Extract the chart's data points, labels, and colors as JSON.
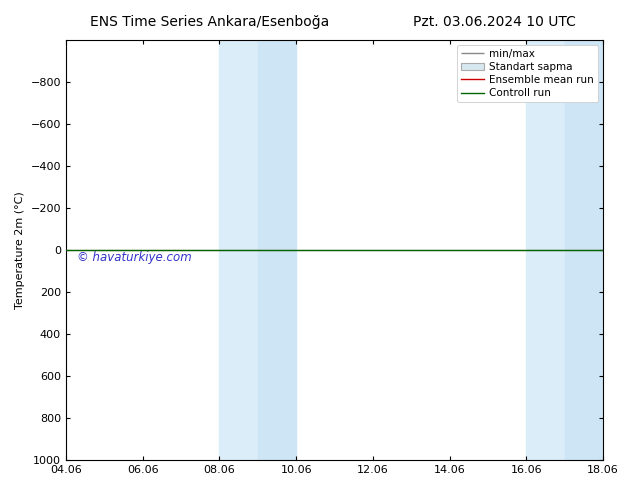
{
  "title_left": "ENS Time Series Ankara/Esenboğa",
  "title_right": "Pzt. 03.06.2024 10 UTC",
  "ylabel": "Temperature 2m (°C)",
  "ylim_bottom": -1000,
  "ylim_top": 1000,
  "yticks": [
    -800,
    -600,
    -400,
    -200,
    0,
    200,
    400,
    600,
    800,
    1000
  ],
  "xtick_labels": [
    "04.06",
    "06.06",
    "08.06",
    "10.06",
    "12.06",
    "14.06",
    "16.06",
    "18.06"
  ],
  "xtick_positions": [
    0,
    2,
    4,
    6,
    8,
    10,
    12,
    14
  ],
  "shaded_regions": [
    [
      4,
      5
    ],
    [
      5,
      6
    ],
    [
      12,
      13
    ],
    [
      13,
      14
    ]
  ],
  "shaded_colors": [
    "#daedf8",
    "#cde5f5",
    "#daedf8",
    "#cde5f5"
  ],
  "ensemble_mean_color": "#cc0000",
  "control_run_color": "#006600",
  "line_y_value": 0,
  "watermark": "© havaturkiye.com",
  "watermark_color": "#3333cc",
  "legend_labels": [
    "min/max",
    "Standart sapma",
    "Ensemble mean run",
    "Controll run"
  ],
  "minmax_color": "#888888",
  "stddev_facecolor": "#d8e8f0",
  "stddev_edgecolor": "#aaaaaa",
  "background_color": "#ffffff",
  "title_fontsize": 10,
  "axis_fontsize": 8,
  "tick_fontsize": 8
}
